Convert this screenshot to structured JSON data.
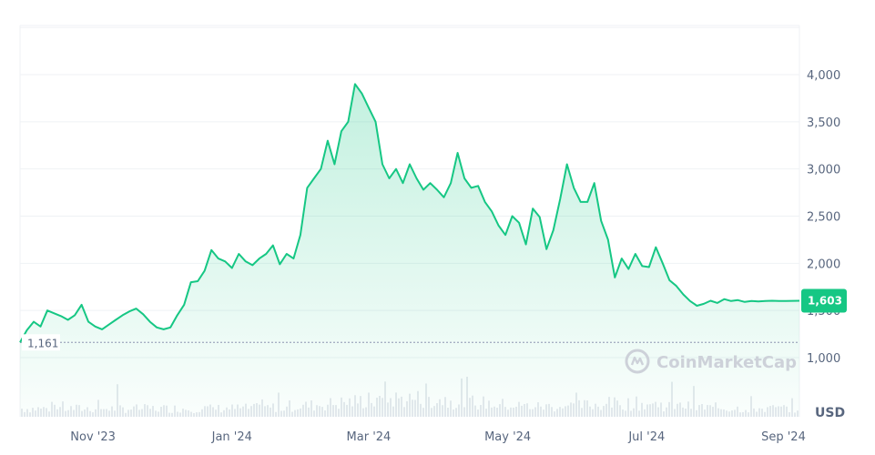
{
  "brand": {
    "name": "CoinMarketCap"
  },
  "colors": {
    "line": "#16c784",
    "grid": "#eff2f5",
    "axis_text": "#58667e",
    "volume": "#e6e9ee"
  },
  "chart_data": {
    "type": "area",
    "x_ticks": [
      "Nov '23",
      "Jan '24",
      "Mar '24",
      "May '24",
      "Jul '24",
      "Sep '24"
    ],
    "y_ticks": [
      "1,000",
      "1,500",
      "2,000",
      "2,500",
      "3,000",
      "3,500",
      "4,000"
    ],
    "currency": "USD",
    "ylim": [
      1000,
      4500
    ],
    "open_price": 1161,
    "open_label": "1,161",
    "current_price": 1603,
    "current_label": "1,603",
    "x": [
      "2023-10-06",
      "2023-10-09",
      "2023-10-12",
      "2023-10-15",
      "2023-10-18",
      "2023-10-21",
      "2023-10-24",
      "2023-10-27",
      "2023-10-30",
      "2023-11-02",
      "2023-11-05",
      "2023-11-08",
      "2023-11-11",
      "2023-11-14",
      "2023-11-17",
      "2023-11-20",
      "2023-11-23",
      "2023-11-26",
      "2023-11-29",
      "2023-12-02",
      "2023-12-05",
      "2023-12-08",
      "2023-12-11",
      "2023-12-14",
      "2023-12-17",
      "2023-12-20",
      "2023-12-23",
      "2023-12-26",
      "2023-12-29",
      "2024-01-01",
      "2024-01-04",
      "2024-01-07",
      "2024-01-10",
      "2024-01-13",
      "2024-01-16",
      "2024-01-19",
      "2024-01-22",
      "2024-01-25",
      "2024-01-28",
      "2024-01-31",
      "2024-02-03",
      "2024-02-06",
      "2024-02-09",
      "2024-02-12",
      "2024-02-15",
      "2024-02-18",
      "2024-02-21",
      "2024-02-24",
      "2024-02-27",
      "2024-03-01",
      "2024-03-04",
      "2024-03-07",
      "2024-03-10",
      "2024-03-13",
      "2024-03-16",
      "2024-03-19",
      "2024-03-22",
      "2024-03-25",
      "2024-03-28",
      "2024-03-31",
      "2024-04-03",
      "2024-04-06",
      "2024-04-09",
      "2024-04-12",
      "2024-04-15",
      "2024-04-18",
      "2024-04-21",
      "2024-04-24",
      "2024-04-27",
      "2024-04-30",
      "2024-05-03",
      "2024-05-06",
      "2024-05-09",
      "2024-05-12",
      "2024-05-15",
      "2024-05-18",
      "2024-05-21",
      "2024-05-24",
      "2024-05-27",
      "2024-05-30",
      "2024-06-02",
      "2024-06-05",
      "2024-06-08",
      "2024-06-11",
      "2024-06-14",
      "2024-06-17",
      "2024-06-20",
      "2024-06-23",
      "2024-06-26",
      "2024-06-29",
      "2024-07-02",
      "2024-07-05",
      "2024-07-08",
      "2024-07-11",
      "2024-07-14",
      "2024-07-17",
      "2024-07-20",
      "2024-07-23",
      "2024-07-26",
      "2024-07-29",
      "2024-08-01",
      "2024-08-04",
      "2024-08-07",
      "2024-08-10",
      "2024-08-13",
      "2024-08-16",
      "2024-08-19",
      "2024-08-22",
      "2024-08-25",
      "2024-08-28",
      "2024-08-31",
      "2024-09-03",
      "2024-09-06",
      "2024-09-09",
      "2024-09-12"
    ],
    "values": [
      1161,
      1290,
      1380,
      1330,
      1500,
      1470,
      1440,
      1400,
      1450,
      1560,
      1380,
      1330,
      1300,
      1350,
      1400,
      1450,
      1490,
      1520,
      1460,
      1380,
      1320,
      1300,
      1320,
      1450,
      1560,
      1800,
      1810,
      1920,
      2140,
      2050,
      2020,
      1950,
      2100,
      2020,
      1980,
      2050,
      2100,
      2190,
      1990,
      2100,
      2050,
      2300,
      2800,
      2900,
      3000,
      3300,
      3050,
      3400,
      3500,
      3900,
      3800,
      3650,
      3500,
      3050,
      2900,
      3000,
      2850,
      3050,
      2900,
      2780,
      2850,
      2780,
      2700,
      2850,
      3170,
      2900,
      2800,
      2820,
      2650,
      2550,
      2400,
      2300,
      2500,
      2430,
      2200,
      2580,
      2490,
      2150,
      2350,
      2680,
      3050,
      2800,
      2650,
      2650,
      2850,
      2450,
      2250,
      1850,
      2050,
      1940,
      2100,
      1970,
      1960,
      2170,
      2000,
      1820,
      1760,
      1670,
      1600,
      1550,
      1570,
      1603,
      1580,
      1620,
      1600,
      1610,
      1590,
      1600,
      1595,
      1600,
      1603,
      1600,
      1600,
      1602,
      1603
    ]
  }
}
